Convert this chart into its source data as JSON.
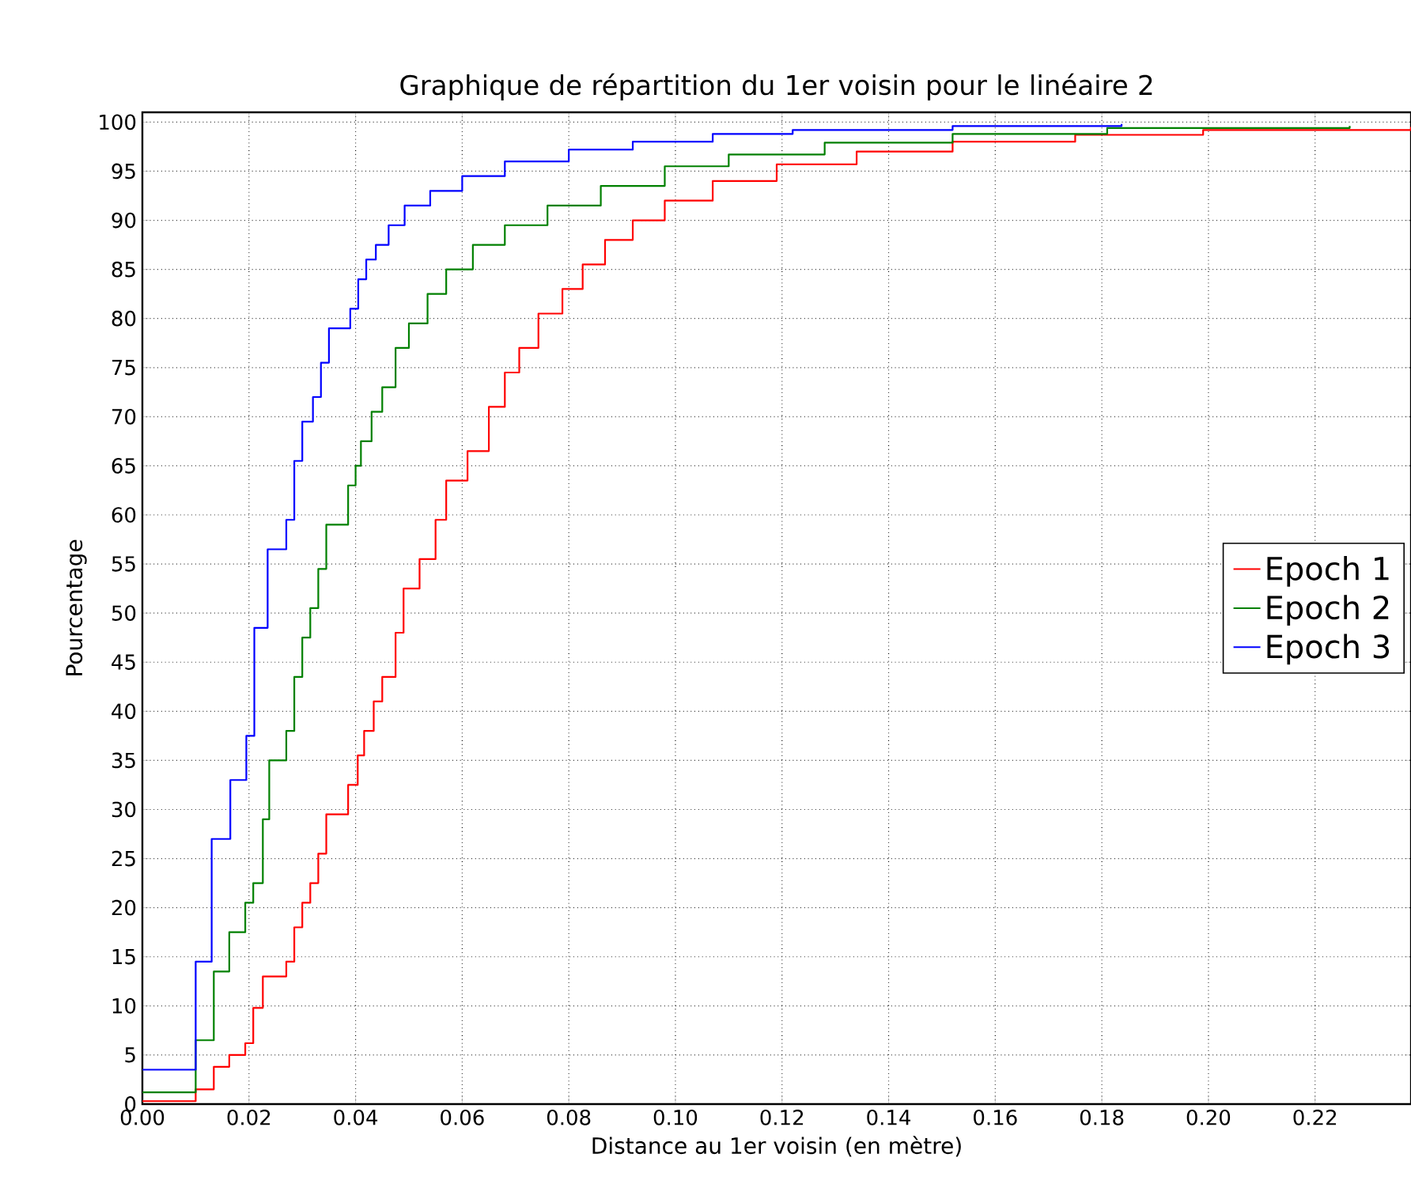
{
  "chart_data": {
    "type": "step",
    "title": "Graphique de répartition du 1er voisin pour le linéaire 2",
    "xlabel": "Distance  au 1er voisin (en mètre)",
    "ylabel": "Pourcentage",
    "xlim": [
      0,
      0.238
    ],
    "ylim": [
      0,
      101
    ],
    "xticks": [
      {
        "value": 0,
        "label": "0.00"
      },
      {
        "value": 0.02,
        "label": "0.02"
      },
      {
        "value": 0.04,
        "label": "0.04"
      },
      {
        "value": 0.06,
        "label": "0.06"
      },
      {
        "value": 0.08,
        "label": "0.08"
      },
      {
        "value": 0.1,
        "label": "0.10"
      },
      {
        "value": 0.12,
        "label": "0.12"
      },
      {
        "value": 0.14,
        "label": "0.14"
      },
      {
        "value": 0.16,
        "label": "0.16"
      },
      {
        "value": 0.18,
        "label": "0.18"
      },
      {
        "value": 0.2,
        "label": "0.20"
      },
      {
        "value": 0.22,
        "label": "0.22"
      }
    ],
    "yticks": [
      0,
      5,
      10,
      15,
      20,
      25,
      30,
      35,
      40,
      45,
      50,
      55,
      60,
      65,
      70,
      75,
      80,
      85,
      90,
      95,
      100
    ],
    "grid": true,
    "legend": "right",
    "marker": "none",
    "line_style": "solid",
    "series": [
      {
        "name": "Epoch 1",
        "color": "#ff0000",
        "x": [
          0,
          0.01,
          0.0134,
          0.0163,
          0.0193,
          0.0208,
          0.0226,
          0.027,
          0.0285,
          0.03,
          0.0315,
          0.033,
          0.0345,
          0.0386,
          0.0404,
          0.0416,
          0.0434,
          0.045,
          0.0475,
          0.049,
          0.052,
          0.055,
          0.057,
          0.061,
          0.065,
          0.068,
          0.0707,
          0.0743,
          0.0788,
          0.0826,
          0.0868,
          0.092,
          0.098,
          0.107,
          0.119,
          0.134,
          0.152,
          0.175,
          0.199,
          0.238
        ],
        "values": [
          0.3,
          1.5,
          3.8,
          5,
          6.2,
          9.8,
          13,
          14.5,
          18,
          20.5,
          22.5,
          25.5,
          29.5,
          32.5,
          35.5,
          38,
          41,
          43.5,
          48,
          52.5,
          55.5,
          59.5,
          63.5,
          66.5,
          71,
          74.5,
          77,
          80.5,
          83,
          85.5,
          88,
          90,
          92,
          94,
          95.7,
          97,
          98,
          98.7,
          99.2,
          99.5
        ]
      },
      {
        "name": "Epoch 2",
        "color": "#008000",
        "x": [
          0,
          0.01,
          0.0134,
          0.0163,
          0.0193,
          0.0208,
          0.0226,
          0.0238,
          0.027,
          0.0285,
          0.03,
          0.0315,
          0.033,
          0.0345,
          0.0386,
          0.04,
          0.041,
          0.043,
          0.045,
          0.0475,
          0.05,
          0.0535,
          0.057,
          0.062,
          0.068,
          0.076,
          0.086,
          0.098,
          0.11,
          0.128,
          0.152,
          0.181,
          0.2265
        ],
        "values": [
          1.2,
          6.5,
          13.5,
          17.5,
          20.5,
          22.5,
          29,
          35,
          38,
          43.5,
          47.5,
          50.5,
          54.5,
          59,
          63,
          65,
          67.5,
          70.5,
          73,
          77,
          79.5,
          82.5,
          85,
          87.5,
          89.5,
          91.5,
          93.5,
          95.5,
          96.7,
          97.9,
          98.8,
          99.4,
          99.6
        ]
      },
      {
        "name": "Epoch 3",
        "color": "#0000ff",
        "x": [
          0,
          0.01,
          0.013,
          0.0165,
          0.0195,
          0.021,
          0.0235,
          0.027,
          0.0285,
          0.03,
          0.032,
          0.0335,
          0.035,
          0.039,
          0.0405,
          0.042,
          0.0438,
          0.0462,
          0.0492,
          0.054,
          0.06,
          0.068,
          0.08,
          0.092,
          0.107,
          0.122,
          0.152,
          0.1837
        ],
        "values": [
          3.5,
          14.5,
          27,
          33,
          37.5,
          48.5,
          56.5,
          59.5,
          65.5,
          69.5,
          72,
          75.5,
          79,
          81,
          84,
          86,
          87.5,
          89.5,
          91.5,
          93,
          94.5,
          96,
          97.2,
          98,
          98.8,
          99.2,
          99.6,
          99.8
        ]
      }
    ]
  }
}
